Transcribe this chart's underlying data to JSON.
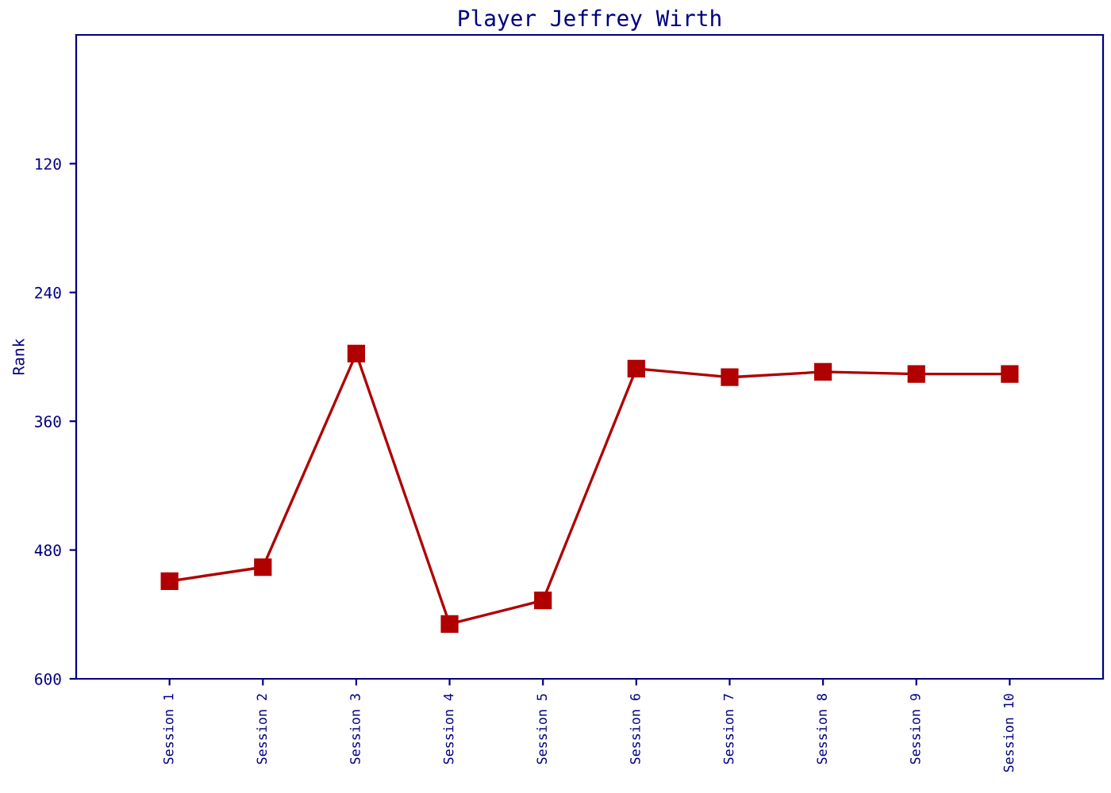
{
  "chart_data": {
    "type": "line",
    "title": "Player Jeffrey Wirth",
    "ylabel": "Rank",
    "categories": [
      "Session 1",
      "Session 2",
      "Session 3",
      "Session 4",
      "Session 5",
      "Session 6",
      "Session 7",
      "Session 8",
      "Session 9",
      "Session 10"
    ],
    "series": [
      {
        "color": "#b00000",
        "values": [
          509,
          496,
          297,
          549,
          527,
          311,
          319,
          314,
          316,
          316
        ]
      }
    ],
    "ylim": [
      600,
      0
    ],
    "yticks": [
      120,
      240,
      360,
      480,
      600
    ],
    "marker": "square",
    "line_style": "solid",
    "grid": false,
    "legend": false
  }
}
